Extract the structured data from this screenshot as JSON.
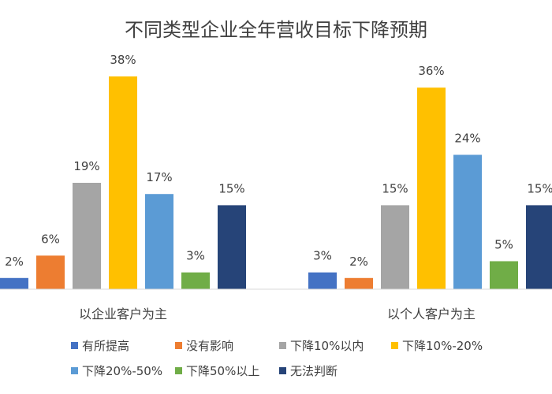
{
  "chart_data": {
    "type": "bar",
    "title": "不同类型企业全年营收目标下降预期",
    "categories": [
      "以企业客户为主",
      "以个人客户为主"
    ],
    "series": [
      {
        "name": "有所提高",
        "color": "#4472C4",
        "values": [
          2,
          3
        ]
      },
      {
        "name": "没有影响",
        "color": "#ED7D31",
        "values": [
          6,
          2
        ]
      },
      {
        "name": "下降10%以内",
        "color": "#A5A5A5",
        "values": [
          19,
          15
        ]
      },
      {
        "name": "下降10%-20%",
        "color": "#FFC000",
        "values": [
          38,
          36
        ]
      },
      {
        "name": "下降20%-50%",
        "color": "#5B9BD5",
        "values": [
          17,
          24
        ]
      },
      {
        "name": "下降50%以上",
        "color": "#70AD47",
        "values": [
          3,
          5
        ]
      },
      {
        "name": "无法判断",
        "color": "#264478",
        "values": [
          15,
          15
        ]
      }
    ],
    "value_labels": [
      [
        "2%",
        "3%"
      ],
      [
        "6%",
        "2%"
      ],
      [
        "19%",
        "15%"
      ],
      [
        "38%",
        "36%"
      ],
      [
        "17%",
        "24%"
      ],
      [
        "3%",
        "5%"
      ],
      [
        "15%",
        "15%"
      ]
    ],
    "ylim": [
      0,
      38
    ],
    "grid": false,
    "legend_position": "bottom"
  }
}
